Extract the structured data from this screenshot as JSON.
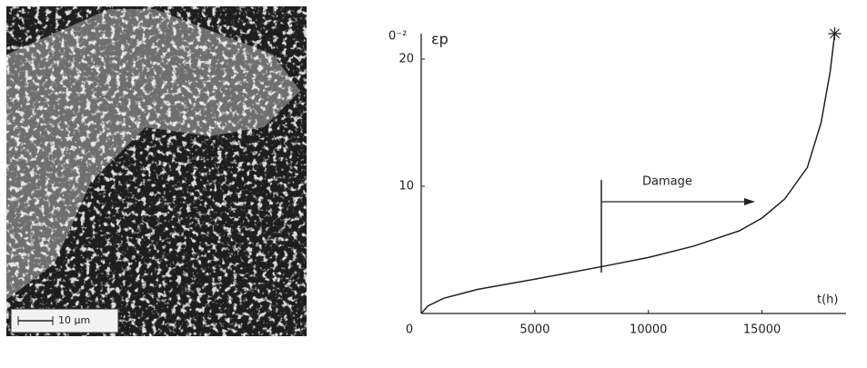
{
  "image": {
    "scale_bar": "10 µm"
  },
  "chart_data": {
    "type": "line",
    "y_label": "εp",
    "y_unit": "0⁻²",
    "x_label": "t(h)",
    "annotation": "Damage",
    "x": [
      0,
      300,
      1000,
      2500,
      5000,
      8000,
      10000,
      12000,
      14000,
      15000,
      16000,
      17000,
      17600,
      18000,
      18200
    ],
    "series": [
      {
        "color": "#222222",
        "values": [
          0,
          0.6,
          1.2,
          1.9,
          2.7,
          3.7,
          4.4,
          5.3,
          6.5,
          7.5,
          9,
          11.5,
          15,
          19,
          22
        ]
      }
    ],
    "xlim": [
      0,
      18700
    ],
    "ylim": [
      0,
      22
    ],
    "xticks": [
      0,
      5000,
      10000,
      15000
    ],
    "yticks": [
      10,
      20
    ],
    "grid": false
  }
}
